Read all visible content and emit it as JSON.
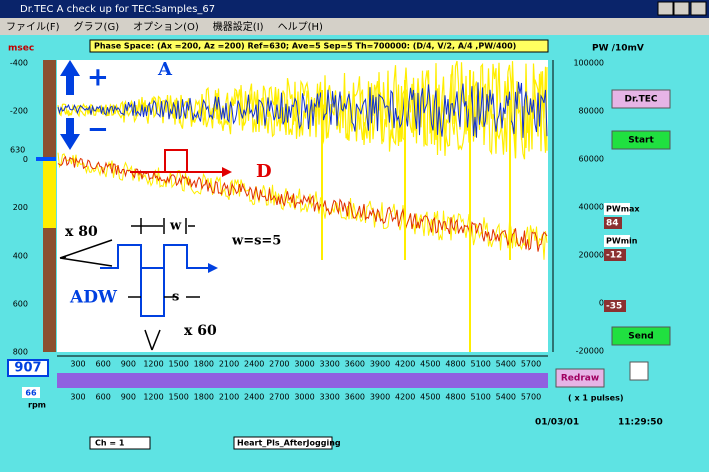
{
  "window": {
    "title": "Dr.TEC   A check up for TEC:Samples_67"
  },
  "menu": [
    "ファイル(F)",
    "グラフ(G)",
    "オプション(O)",
    "機器設定(I)",
    "ヘルプ(H)"
  ],
  "header": "Phase Space: (Ax =200, Az =200) Ref=630; Ave=5 Sep=5 Th=700000: (D/4, V/2, A/4 ,PW/400)",
  "left_axis": {
    "label": "msec",
    "ref": "630",
    "ticks": [
      -400,
      -200,
      0,
      200,
      400,
      600,
      800
    ]
  },
  "right_axis": {
    "label": "PW /10mV",
    "ticks": [
      100000,
      80000,
      60000,
      40000,
      20000,
      0,
      -20000
    ]
  },
  "x_axis": {
    "ticks": [
      300,
      600,
      900,
      1200,
      1500,
      1800,
      2100,
      2400,
      2700,
      3000,
      3300,
      3600,
      3900,
      4200,
      4500,
      4800,
      5100,
      5400,
      5700
    ],
    "unit": "( x 1 pulses)"
  },
  "annotations": {
    "plus": "+",
    "minus": "−",
    "a": "A",
    "d": "D",
    "x80": "x 80",
    "w": "w",
    "ws": "w=s=5",
    "adw": "ADW",
    "s": "s",
    "x60": "x 60"
  },
  "buttons": {
    "drtec": "Dr.TEC",
    "start": "Start",
    "redraw": "Redraw",
    "send": "Send"
  },
  "readouts": {
    "pwmax_label": "PWmax",
    "pwmax": "84",
    "pwmin_label": "PWmin",
    "pwmin": "-12",
    "other": "-35",
    "count": "907",
    "rate": "66",
    "rate_unit": "rpm"
  },
  "status": {
    "date": "01/03/01",
    "time": "11:29:50",
    "channel": "Ch = 1",
    "file": "Heart_Pls_AfterJogging"
  }
}
